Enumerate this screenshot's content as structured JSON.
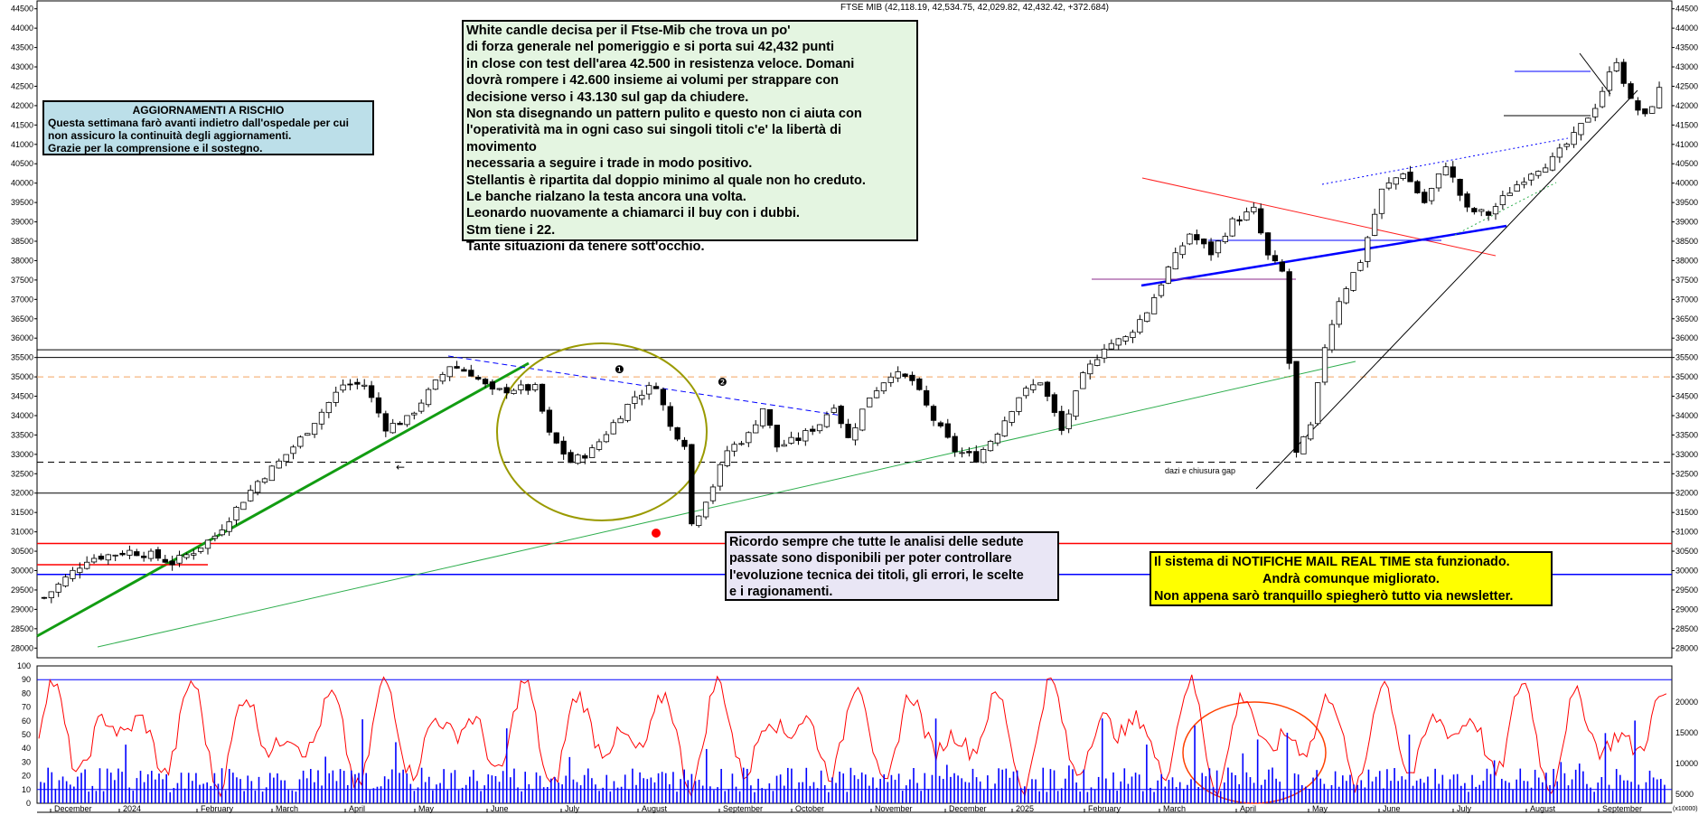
{
  "chart_data": {
    "type": "candlestick",
    "title": "FTSE MIB (42,118.19, 42,534.75, 42,029.82, 42,432.42, +372.684)",
    "price_axis": {
      "min": 27750,
      "max": 44400,
      "ticks": [
        28000,
        28500,
        29000,
        29500,
        30000,
        30500,
        31000,
        31500,
        32000,
        32500,
        33000,
        33500,
        34000,
        34500,
        35000,
        35500,
        36000,
        36500,
        37000,
        37500,
        38000,
        38500,
        39000,
        39500,
        40000,
        40500,
        41000,
        41500,
        42000,
        42500,
        43000,
        43500,
        44000,
        44500
      ]
    },
    "oscillator_axis": {
      "min": 0,
      "max": 100,
      "ticks": [
        0,
        10,
        20,
        30,
        40,
        50,
        60,
        70,
        80,
        90,
        100
      ]
    },
    "volume_axis": {
      "ticks": [
        "5000",
        "10000",
        "15000",
        "20000"
      ],
      "unit_label": "(x10000)"
    },
    "months": [
      "December",
      "2024",
      "February",
      "March",
      "April",
      "May",
      "June",
      "July",
      "August",
      "September",
      "October",
      "November",
      "December",
      "2025",
      "February",
      "March",
      "April",
      "May",
      "June",
      "July",
      "August",
      "September"
    ],
    "price_path": [
      [
        0,
        29300
      ],
      [
        3,
        29800
      ],
      [
        6,
        30300
      ],
      [
        9,
        30400
      ],
      [
        12,
        30500
      ],
      [
        15,
        30400
      ],
      [
        18,
        30200
      ],
      [
        21,
        30500
      ],
      [
        24,
        30900
      ],
      [
        27,
        31600
      ],
      [
        30,
        32300
      ],
      [
        33,
        32800
      ],
      [
        36,
        33400
      ],
      [
        39,
        34100
      ],
      [
        42,
        34800
      ],
      [
        45,
        34800
      ],
      [
        48,
        33700
      ],
      [
        51,
        33900
      ],
      [
        54,
        34600
      ],
      [
        57,
        35300
      ],
      [
        60,
        35100
      ],
      [
        63,
        34600
      ],
      [
        66,
        34700
      ],
      [
        69,
        34700
      ],
      [
        71,
        33500
      ],
      [
        74,
        32800
      ],
      [
        77,
        33100
      ],
      [
        80,
        33800
      ],
      [
        83,
        34500
      ],
      [
        86,
        34800
      ],
      [
        88,
        33700
      ],
      [
        90,
        33300
      ],
      [
        91,
        31200
      ],
      [
        92,
        31500
      ],
      [
        94,
        32200
      ],
      [
        96,
        33100
      ],
      [
        99,
        33500
      ],
      [
        101,
        34200
      ],
      [
        103,
        33200
      ],
      [
        106,
        33400
      ],
      [
        109,
        33800
      ],
      [
        111,
        34300
      ],
      [
        113,
        33400
      ],
      [
        116,
        34500
      ],
      [
        119,
        35100
      ],
      [
        122,
        34900
      ],
      [
        125,
        33900
      ],
      [
        128,
        33100
      ],
      [
        131,
        32900
      ],
      [
        134,
        33600
      ],
      [
        137,
        34500
      ],
      [
        140,
        34900
      ],
      [
        143,
        33600
      ],
      [
        146,
        35000
      ],
      [
        149,
        35800
      ],
      [
        152,
        36000
      ],
      [
        155,
        36700
      ],
      [
        158,
        37800
      ],
      [
        161,
        38700
      ],
      [
        164,
        38200
      ],
      [
        167,
        39000
      ],
      [
        170,
        39300
      ],
      [
        172,
        38100
      ],
      [
        174,
        37700
      ],
      [
        176,
        33000
      ],
      [
        178,
        33700
      ],
      [
        180,
        35800
      ],
      [
        182,
        37000
      ],
      [
        185,
        38000
      ],
      [
        188,
        39800
      ],
      [
        191,
        40300
      ],
      [
        194,
        39500
      ],
      [
        197,
        40500
      ],
      [
        200,
        39300
      ],
      [
        203,
        39200
      ],
      [
        206,
        39800
      ],
      [
        209,
        40300
      ],
      [
        212,
        40600
      ],
      [
        215,
        41200
      ],
      [
        218,
        42000
      ],
      [
        221,
        43200
      ],
      [
        223,
        42100
      ],
      [
        225,
        41700
      ],
      [
        227,
        42400
      ]
    ],
    "horizontal_levels": [
      {
        "value": 35500,
        "style": "solid",
        "color": "#000000"
      },
      {
        "value": 35700,
        "style": "solid",
        "color": "#000000"
      },
      {
        "value": 35000,
        "style": "dashed",
        "color": "#f4a460"
      },
      {
        "value": 32800,
        "style": "dashed",
        "color": "#000000"
      },
      {
        "value": 32000,
        "style": "solid",
        "color": "#000000"
      },
      {
        "value": 30700,
        "style": "solid",
        "color": "#ff0000"
      },
      {
        "value": 29900,
        "style": "solid",
        "color": "#0000ff"
      }
    ],
    "annotations": [
      {
        "text": "dazi e chiusura gap"
      },
      {
        "text": "❶"
      },
      {
        "text": "❷"
      },
      {
        "text": "←"
      }
    ]
  },
  "notes": {
    "risk": {
      "title": "AGGIORNAMENTI A RISCHIO",
      "lines": [
        "Questa settimana farò avanti indietro dall'ospedale per cui",
        "non assicuro la continuità degli aggiornamenti.",
        "Grazie per la comprensione e il sostegno."
      ]
    },
    "comment": {
      "lines": [
        "White candle decisa per il Ftse-Mib che trova un po'",
        "di forza generale nel pomeriggio e si porta sui 42,432 punti",
        "in close con test dell'area 42.500 in resistenza veloce.  Domani",
        "dovrà rompere i 42.600 insieme ai volumi per strappare con",
        "decisione verso i 43.130 sul gap da chiudere.",
        "Non sta disegnando un pattern pulito e questo non ci aiuta con",
        "l'operatività ma in ogni caso sui singoli titoli c'e' la libertà di movimento",
        "necessaria a seguire i trade in modo positivo.",
        "Stellantis è ripartita dal doppio minimo al quale non ho creduto.",
        "Le banche rialzano la testa ancora una volta.",
        "Leonardo nuovamente a chiamarci il buy con i dubbi.",
        "Stm tiene i 22.",
        "Tante situazioni da tenere sott'occhio."
      ]
    },
    "analysis": {
      "lines": [
        "Ricordo sempre che tutte le analisi delle sedute",
        "passate sono disponibili per poter controllare",
        " l'evoluzione tecnica dei titoli, gli errori, le scelte",
        "e i ragionamenti."
      ]
    },
    "notify": {
      "lines": [
        "Il sistema di NOTIFICHE MAIL REAL TIME sta funzionado.",
        "Andrà comunque migliorato.",
        "Non appena sarò tranquillo spiegherò tutto via newsletter."
      ]
    }
  }
}
